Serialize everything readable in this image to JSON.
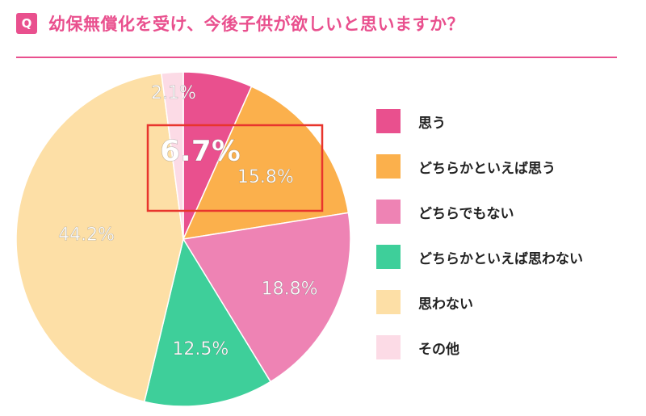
{
  "header": {
    "badge": "Q",
    "title": "幼保無償化を受け、今後子供が欲しいと思いますか？"
  },
  "chart_data": {
    "type": "pie",
    "categories": [
      "思う",
      "どちらかといえば思う",
      "どちらでもない",
      "どちらかといえば思わない",
      "思わない",
      "その他"
    ],
    "values": [
      6.7,
      15.8,
      18.8,
      12.5,
      44.2,
      2.1
    ],
    "labels": [
      "6.7%",
      "15.8%",
      "18.8%",
      "12.5%",
      "44.2%",
      "2.1%"
    ],
    "colors": [
      "#e9508e",
      "#fbb04c",
      "#ee83b4",
      "#3ecf9a",
      "#fddfa6",
      "#fcdbe6"
    ],
    "legend": "right",
    "highlight": "6.7%"
  }
}
